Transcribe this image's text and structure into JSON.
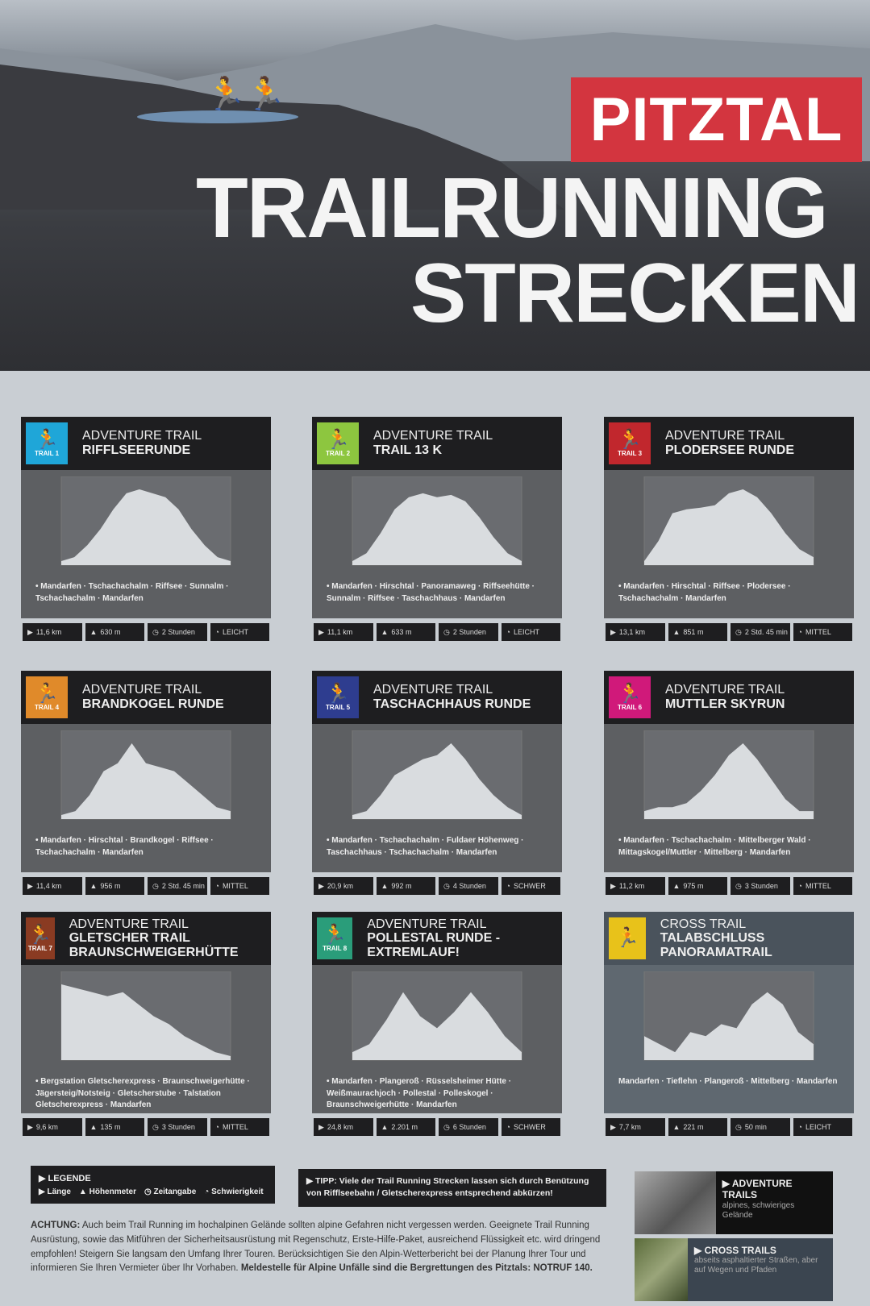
{
  "header": {
    "brand": "PITZTAL",
    "title_line1": "TRAILRUNNING",
    "title_line2": "STRECKEN"
  },
  "trails": [
    {
      "type": "ADVENTURE TRAIL",
      "name": "RIFFLSEERUNDE",
      "label": "TRAIL 1",
      "color": "#1fa6d8",
      "route": "• Mandarfen · Tschachachalm · Riffsee · Sunnalm · Tschachachalm · Mandarfen",
      "length": "11,6 km",
      "elevation": "630 m",
      "time": "2 Stunden",
      "difficulty": "LEICHT"
    },
    {
      "type": "ADVENTURE TRAIL",
      "name": "TRAIL 13 K",
      "label": "TRAIL 2",
      "color": "#8dc63f",
      "route": "• Mandarfen · Hirschtal · Panoramaweg · Riffseehütte · Sunnalm · Riffsee · Taschachhaus · Mandarfen",
      "length": "11,1 km",
      "elevation": "633 m",
      "time": "2 Stunden",
      "difficulty": "LEICHT"
    },
    {
      "type": "ADVENTURE TRAIL",
      "name": "PLODERSEE RUNDE",
      "label": "TRAIL 3",
      "color": "#c1272d",
      "route": "• Mandarfen · Hirschtal · Riffsee · Plodersee · Tschachachalm · Mandarfen",
      "length": "13,1 km",
      "elevation": "851 m",
      "time": "2 Std. 45 min",
      "difficulty": "MITTEL"
    },
    {
      "type": "ADVENTURE TRAIL",
      "name": "BRANDKOGEL RUNDE",
      "label": "TRAIL 4",
      "color": "#e08a2a",
      "route": "• Mandarfen · Hirschtal · Brandkogel · Riffsee · Tschachachalm · Mandarfen",
      "length": "11,4 km",
      "elevation": "956 m",
      "time": "2 Std. 45 min",
      "difficulty": "MITTEL"
    },
    {
      "type": "ADVENTURE TRAIL",
      "name": "TASCHACHHAUS RUNDE",
      "label": "TRAIL 5",
      "color": "#2e3d8f",
      "route": "• Mandarfen · Tschachachalm · Fuldaer Höhenweg · Taschachhaus · Tschachachalm · Mandarfen",
      "length": "20,9 km",
      "elevation": "992 m",
      "time": "4 Stunden",
      "difficulty": "SCHWER"
    },
    {
      "type": "ADVENTURE TRAIL",
      "name": "MUTTLER SKYRUN",
      "label": "TRAIL 6",
      "color": "#d0197a",
      "route": "• Mandarfen · Tschachachalm · Mittelberger Wald · Mittagskogel/Muttler · Mittelberg · Mandarfen",
      "length": "11,2 km",
      "elevation": "975 m",
      "time": "3 Stunden",
      "difficulty": "MITTEL"
    },
    {
      "type": "ADVENTURE TRAIL",
      "name": "GLETSCHER TRAIL BRAUNSCHWEIGERHÜTTE",
      "label": "TRAIL 7",
      "color": "#8a3b22",
      "route": "• Bergstation Gletscherexpress · Braunschweigerhütte · Jägersteig/Notsteig · Gletscherstube · Talstation Gletscherexpress · Mandarfen",
      "length": "9,6 km",
      "elevation": "135 m",
      "time": "3 Stunden",
      "difficulty": "MITTEL"
    },
    {
      "type": "ADVENTURE TRAIL",
      "name": "POLLESTAL RUNDE - EXTREMLAUF!",
      "label": "TRAIL 8",
      "color": "#2a9d7a",
      "route": "• Mandarfen · Plangeroß · Rüsselsheimer Hütte · Weißmaurachjoch · Pollestal · Polleskogel · Braunschweigerhütte · Mandarfen",
      "length": "24,8 km",
      "elevation": "2.201 m",
      "time": "6 Stunden",
      "difficulty": "SCHWER"
    },
    {
      "type": "CROSS TRAIL",
      "name": "TALABSCHLUSS PANORAMATRAIL",
      "label": "",
      "color": "#e8c21a",
      "route": "Mandarfen · Tieflehn · Plangeroß · Mittelberg · Mandarfen",
      "length": "7,7 km",
      "elevation": "221 m",
      "time": "50 min",
      "difficulty": "LEICHT"
    }
  ],
  "legend": {
    "title": "▶ LEGENDE",
    "items": [
      "Länge",
      "Höhenmeter",
      "Zeitangabe",
      "Schwierigkeit"
    ]
  },
  "tip": {
    "label": "▶ TIPP:",
    "text": "Viele der Trail Running Strecken lassen sich durch Benützung von Rifflseebahn / Gletscherexpress entsprechend abkürzen!"
  },
  "side": [
    {
      "title": "▶ ADVENTURE TRAILS",
      "sub": "alpines, schwieriges Gelände"
    },
    {
      "title": "▶ CROSS TRAILS",
      "sub": "abseits asphaltierter Straßen, aber auf Wegen und Pfaden"
    }
  ],
  "warning": {
    "label": "ACHTUNG:",
    "text": "Auch beim Trail Running im hochalpinen Gelände sollten alpine Gefahren nicht vergessen werden. Geeignete Trail Running Ausrüstung, sowie das Mitführen der Sicherheitsausrüstung mit Regenschutz, Erste-Hilfe-Paket, ausreichend Flüssigkeit etc. wird dringend empfohlen! Steigern Sie langsam den Umfang Ihrer Touren. Berücksichtigen Sie den Alpin-Wetterbericht bei der Planung Ihrer Tour und informieren Sie Ihren Vermieter über Ihr Vorhaben.",
    "emergency": "Meldestelle für Alpine Unfälle sind die Bergrettungen des Pitztals: NOTRUF 140."
  }
}
